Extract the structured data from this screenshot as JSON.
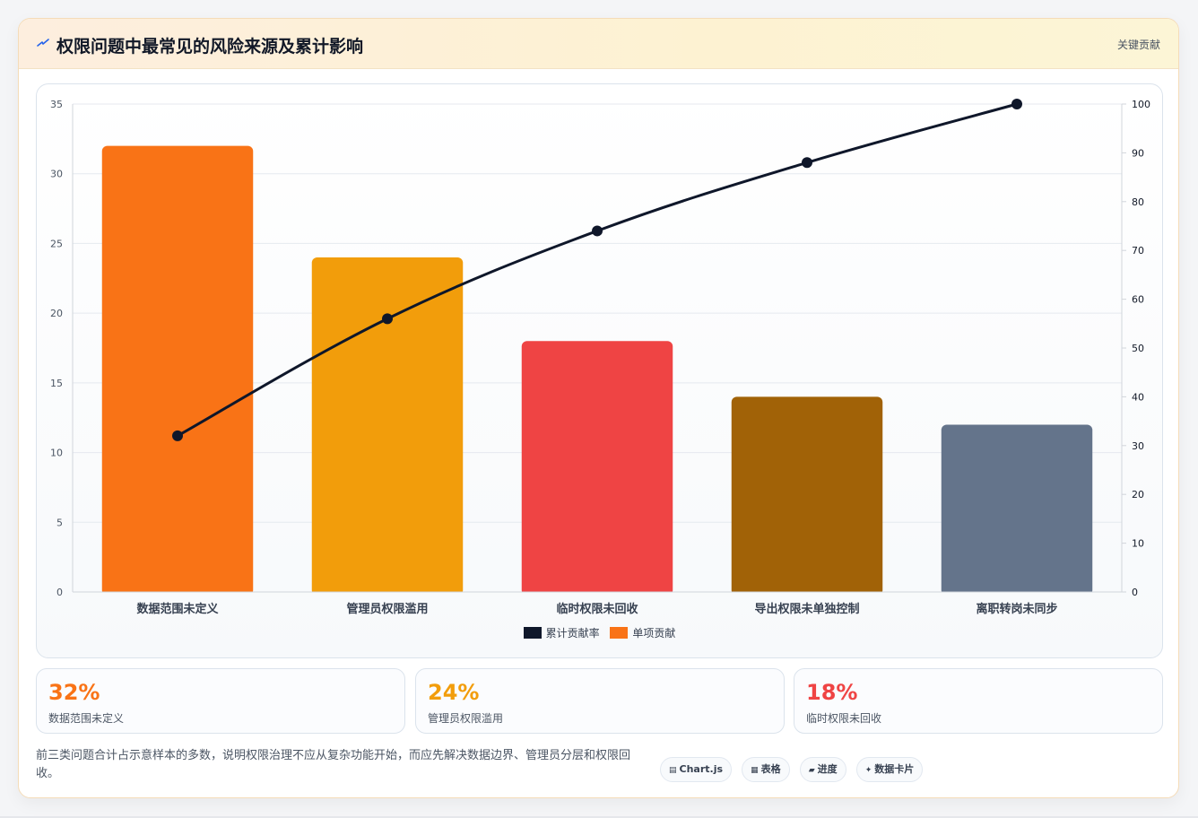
{
  "header": {
    "title": "权限问题中最常见的风险来源及累计影响",
    "tag": "关键贡献"
  },
  "colors": {
    "line": "#0f172a",
    "bars": [
      "#f97316",
      "#f29d0b",
      "#ef4444",
      "#a16207",
      "#64748b"
    ]
  },
  "chart_data": {
    "type": "bar",
    "categories": [
      "数据范围未定义",
      "管理员权限滥用",
      "临时权限未回收",
      "导出权限未单独控制",
      "离职转岗未同步"
    ],
    "series": [
      {
        "name": "单项贡献",
        "type": "bar",
        "axis": "left",
        "values": [
          32,
          24,
          18,
          14,
          12
        ]
      },
      {
        "name": "累计贡献率",
        "type": "line",
        "axis": "right",
        "values": [
          32,
          56,
          74,
          88,
          100
        ]
      }
    ],
    "y_left": {
      "min": 0,
      "max": 35,
      "ticks": [
        "0",
        "5",
        "10",
        "15",
        "20",
        "25",
        "30",
        "35"
      ]
    },
    "y_right": {
      "min": 0,
      "max": 100,
      "ticks": [
        "0",
        "10",
        "20",
        "30",
        "40",
        "50",
        "60",
        "70",
        "80",
        "90",
        "100"
      ]
    },
    "legend": [
      "累计贡献率",
      "单项贡献"
    ],
    "legend_position": "bottom",
    "grid": true
  },
  "stats": [
    {
      "value": "32%",
      "label": "数据范围未定义",
      "color": "#f97316"
    },
    {
      "value": "24%",
      "label": "管理员权限滥用",
      "color": "#f29d0b"
    },
    {
      "value": "18%",
      "label": "临时权限未回收",
      "color": "#ef4444"
    }
  ],
  "note": "前三类问题合计占示意样本的多数，说明权限治理不应从复杂功能开始，而应先解决数据边界、管理员分层和权限回收。",
  "chips": [
    {
      "icon": "▤",
      "label": "Chart.js"
    },
    {
      "icon": "▦",
      "label": "表格"
    },
    {
      "icon": "▰",
      "label": "进度"
    },
    {
      "icon": "✦",
      "label": "数据卡片"
    }
  ]
}
